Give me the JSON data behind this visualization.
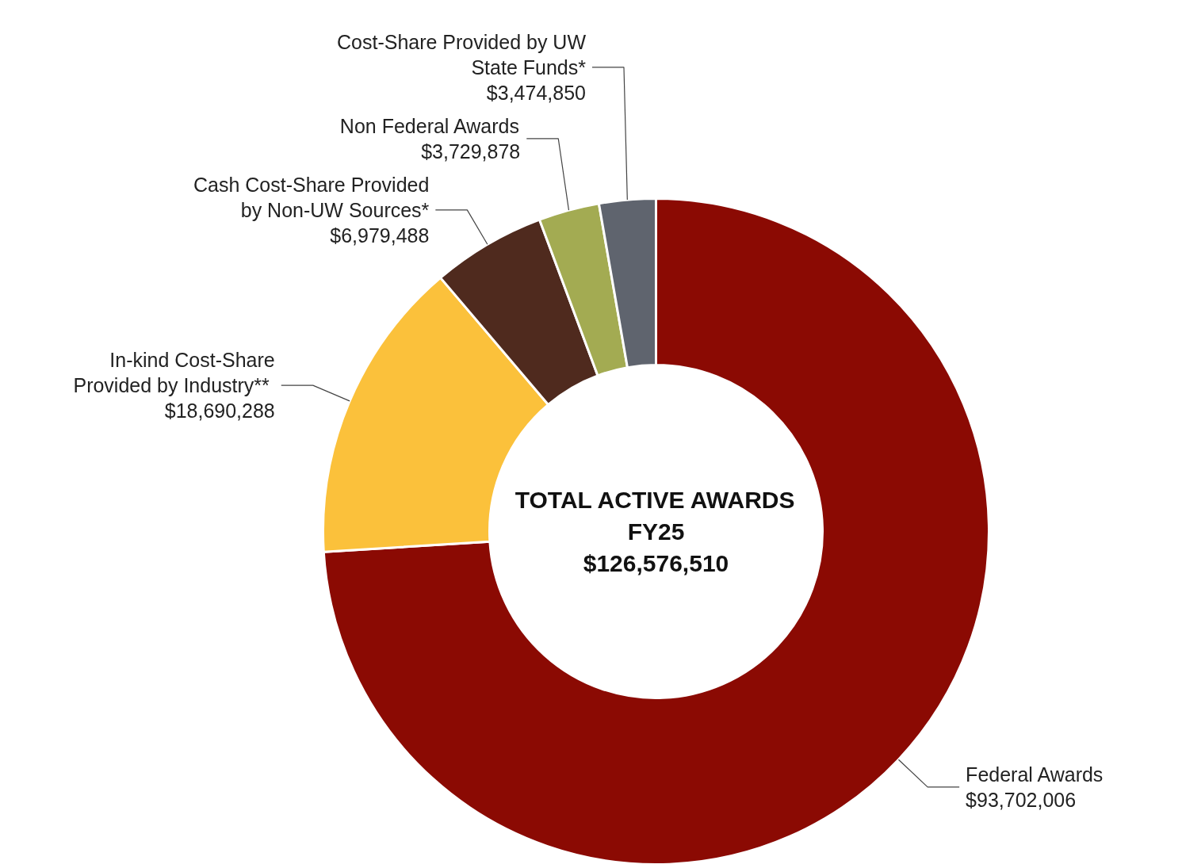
{
  "chart_data": {
    "type": "donut",
    "title": "TOTAL ACTIVE AWARDS FY25",
    "subtitle": "$126,576,510",
    "categories": [
      "Federal Awards",
      "In-kind Cost-Share Provided by  Industry**",
      "Cash Cost-Share Provided by Non-UW Sources*",
      "Non Federal Awards",
      "Cost-Share Provided by UW State Funds*"
    ],
    "values": [
      93702006,
      18690288,
      6979488,
      3729878,
      3474850
    ],
    "colors": [
      "#8b0a03",
      "#fbc13b",
      "#4f2a1e",
      "#a3ab52",
      "#5f646e"
    ],
    "value_labels": [
      "$93,702,006",
      "$18,690,288",
      "$6,979,488",
      "$3,729,878",
      "$3,474,850"
    ]
  }
}
